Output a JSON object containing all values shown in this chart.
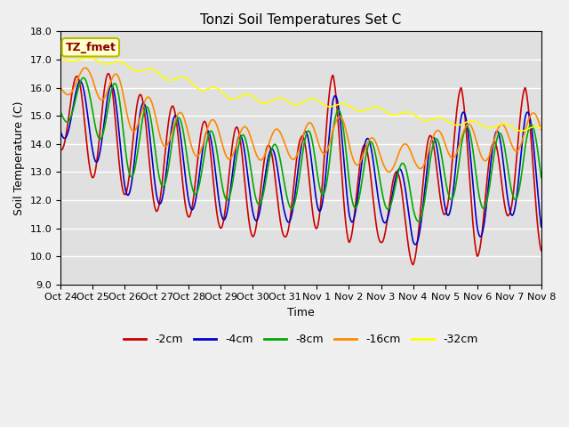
{
  "title": "Tonzi Soil Temperatures Set C",
  "xlabel": "Time",
  "ylabel": "Soil Temperature (C)",
  "ylim": [
    9.0,
    18.0
  ],
  "yticks": [
    9.0,
    10.0,
    11.0,
    12.0,
    13.0,
    14.0,
    15.0,
    16.0,
    17.0,
    18.0
  ],
  "xtick_labels": [
    "Oct 24",
    "Oct 25",
    "Oct 26",
    "Oct 27",
    "Oct 28",
    "Oct 29",
    "Oct 30",
    "Oct 31",
    "Nov 1",
    "Nov 2",
    "Nov 3",
    "Nov 4",
    "Nov 5",
    "Nov 6",
    "Nov 7",
    "Nov 8"
  ],
  "legend_label": "TZ_fmet",
  "series_colors": [
    "#cc0000",
    "#0000cc",
    "#00aa00",
    "#ff8800",
    "#ffff00"
  ],
  "series_labels": [
    "-2cm",
    "-4cm",
    "-8cm",
    "-16cm",
    "-32cm"
  ],
  "fig_facecolor": "#f0f0f0",
  "ax_facecolor": "#e0e0e0",
  "grid_color": "#ffffff",
  "title_fontsize": 11,
  "label_fontsize": 9,
  "tick_fontsize": 8,
  "linewidth": 1.2
}
